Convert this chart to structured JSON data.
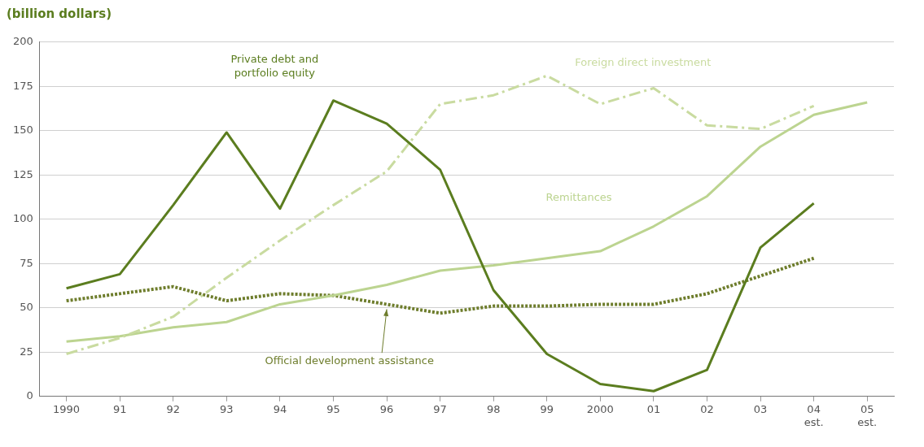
{
  "chart_data": {
    "type": "line",
    "ylabel": "(billion dollars)",
    "categories": [
      "1990",
      "91",
      "92",
      "93",
      "94",
      "95",
      "96",
      "97",
      "98",
      "99",
      "2000",
      "01",
      "02",
      "03",
      "04 est.",
      "05 est."
    ],
    "series": [
      {
        "name": "Private debt and portfolio equity",
        "color": "#5b7d1f",
        "line_style": "solid",
        "values": [
          61,
          69,
          108,
          149,
          106,
          167,
          154,
          128,
          60,
          24,
          7,
          3,
          15,
          84,
          109,
          null
        ]
      },
      {
        "name": "Foreign direct investment",
        "color": "#c9dba0",
        "line_style": "dashed",
        "values": [
          24,
          33,
          45,
          67,
          88,
          108,
          127,
          165,
          170,
          181,
          165,
          174,
          153,
          151,
          164,
          null
        ]
      },
      {
        "name": "Remittances",
        "color": "#bcd490",
        "line_style": "solid",
        "values": [
          31,
          34,
          39,
          42,
          52,
          57,
          63,
          71,
          74,
          78,
          82,
          96,
          113,
          141,
          159,
          166
        ]
      },
      {
        "name": "Official development assistance",
        "color": "#6e7d2c",
        "line_style": "dotted",
        "values": [
          54,
          58,
          62,
          54,
          58,
          57,
          52,
          47,
          51,
          51,
          52,
          52,
          58,
          68,
          78,
          null
        ]
      }
    ],
    "ylim": [
      0,
      200
    ],
    "yticks": [
      0,
      25,
      50,
      75,
      100,
      125,
      150,
      175,
      200
    ],
    "grid": "y",
    "marker": "none",
    "legend": false
  }
}
